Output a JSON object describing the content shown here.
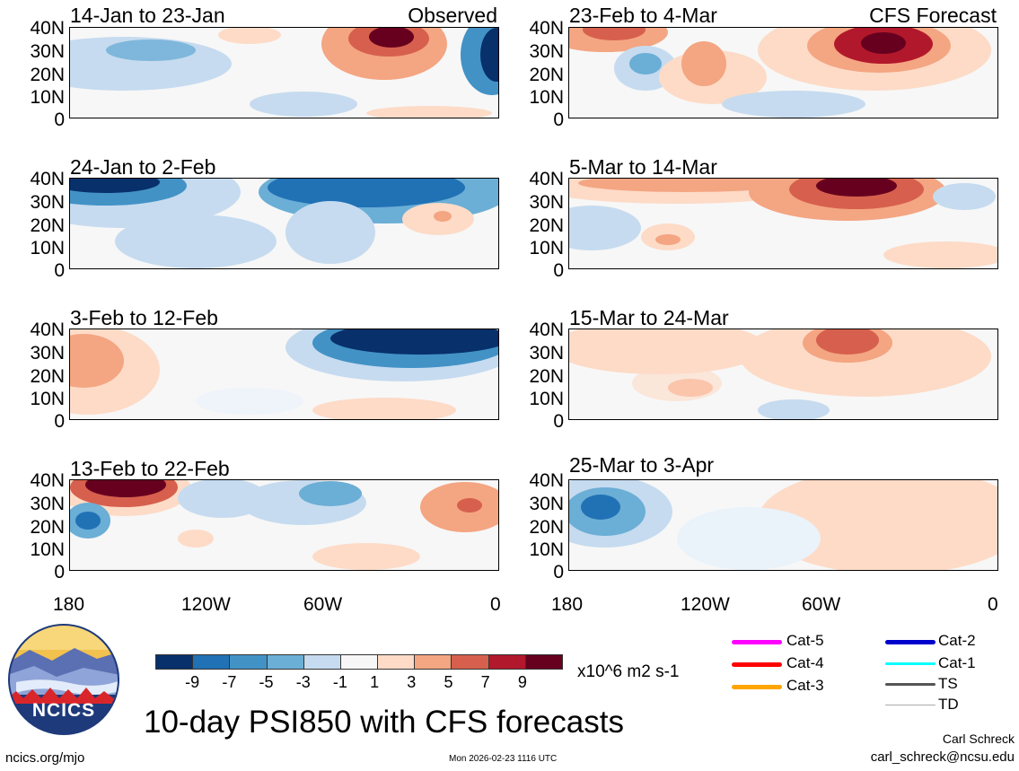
{
  "panels": [
    {
      "period": "14-Jan to 23-Jan",
      "label": "Observed"
    },
    {
      "period": "24-Jan to 2-Feb",
      "label": ""
    },
    {
      "period": "3-Feb to 12-Feb",
      "label": ""
    },
    {
      "period": "13-Feb to 22-Feb",
      "label": ""
    },
    {
      "period": "23-Feb to 4-Mar",
      "label": "CFS Forecast"
    },
    {
      "period": "5-Mar to 14-Mar",
      "label": ""
    },
    {
      "period": "15-Mar to 24-Mar",
      "label": ""
    },
    {
      "period": "25-Mar to 3-Apr",
      "label": ""
    }
  ],
  "y_ticks": [
    "40N",
    "30N",
    "20N",
    "10N",
    "0"
  ],
  "x_ticks": [
    "180",
    "120W",
    "60W",
    "0"
  ],
  "colorbar": {
    "colors": [
      "#08306b",
      "#2171b5",
      "#4292c6",
      "#6baed6",
      "#c6dbef",
      "#f7f7f7",
      "#fddbc7",
      "#f4a582",
      "#d6604d",
      "#b2182b",
      "#67001f"
    ],
    "tick_labels": [
      "-9",
      "-7",
      "-5",
      "-3",
      "-1",
      "1",
      "3",
      "5",
      "7",
      "9"
    ],
    "units": "x10^6 m2 s-1"
  },
  "legend": [
    {
      "label": "Cat-5",
      "color": "#ff00ff"
    },
    {
      "label": "Cat-2",
      "color": "#0000cc"
    },
    {
      "label": "Cat-4",
      "color": "#ff0000"
    },
    {
      "label": "Cat-1",
      "color": "#00ffff"
    },
    {
      "label": "Cat-3",
      "color": "#ffa500"
    },
    {
      "label": "TS",
      "color": "#555555"
    },
    {
      "label": "TD",
      "color": "#aaaaaa"
    }
  ],
  "main_title": "10-day PSI850 with CFS forecasts",
  "logo_text": "NCICS",
  "footer": {
    "website": "ncics.org/mjo",
    "timestamp": "Mon 2026-02-23 1116 UTC",
    "author": "Carl Schreck",
    "email": "carl_schreck@ncsu.edu"
  }
}
